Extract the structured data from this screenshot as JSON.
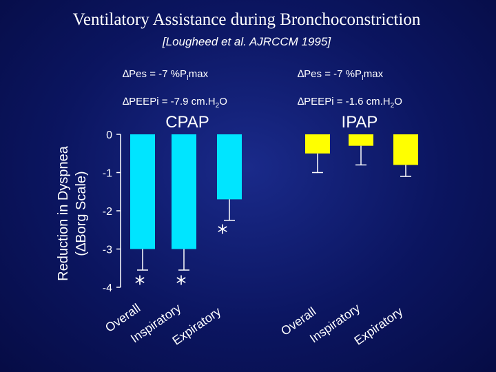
{
  "slide": {
    "title": "Ventilatory Assistance during Bronchoconstriction",
    "citation": "[Lougheed et al.  AJRCCM 1995]"
  },
  "annotations": {
    "cpap": {
      "pes": {
        "prefix": "∆Pes = -7 %P",
        "sub": "I",
        "suffix": "max"
      },
      "peepi": {
        "prefix": "∆PEEPi = -7.9 cm.H",
        "sub": "2",
        "suffix": "O"
      }
    },
    "ipap": {
      "pes": {
        "prefix": "∆Pes = -7 %P",
        "sub": "I",
        "suffix": "max"
      },
      "peepi": {
        "prefix": "∆PEEPi = -1.6 cm.H",
        "sub": "2",
        "suffix": "O"
      }
    }
  },
  "colors": {
    "background": "#0b1560",
    "cpap_bar": "#00e5ff",
    "ipap_bar": "#ffff00",
    "text": "#ffffff"
  },
  "chart_data": {
    "type": "bar",
    "ylabel": "Reduction in Dyspnea",
    "ylabel_line2": "(∆Borg Scale)",
    "ylim": [
      -4,
      0
    ],
    "yticks": [
      0,
      -1,
      -2,
      -3,
      -4
    ],
    "grid": false,
    "significance_marker": "*",
    "groups": [
      {
        "name": "CPAP",
        "color": "#00e5ff",
        "categories": [
          "Overall",
          "Inspiratory",
          "Expiratory"
        ],
        "values": [
          -3.0,
          -3.0,
          -1.7
        ],
        "error": [
          0.55,
          0.55,
          0.55
        ],
        "significant": [
          true,
          true,
          true
        ]
      },
      {
        "name": "IPAP",
        "color": "#ffff00",
        "categories": [
          "Overall",
          "Inspiratory",
          "Expiratory"
        ],
        "values": [
          -0.5,
          -0.3,
          -0.8
        ],
        "error": [
          0.5,
          0.5,
          0.3
        ],
        "significant": [
          false,
          false,
          false
        ]
      }
    ]
  }
}
